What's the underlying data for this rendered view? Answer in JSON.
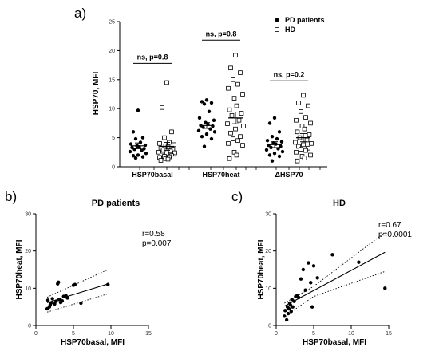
{
  "figure": {
    "panel_a_label": "a)",
    "panel_b_label": "b)",
    "panel_c_label": "c)"
  },
  "chart_data": [
    {
      "panel": "a",
      "type": "scatter",
      "title": "",
      "xlabel": "",
      "ylabel": "HSP70, MFI",
      "ylim": [
        0,
        25
      ],
      "yticks": [
        0,
        5,
        10,
        15,
        20,
        25
      ],
      "categories": [
        "HSP70basal",
        "HSP70heat",
        "ΔHSP70"
      ],
      "legend": {
        "placement": "top-right",
        "entries": [
          "PD patients",
          "HD"
        ]
      },
      "annotations": [
        "ns, p=0.8",
        "ns, p=0.8",
        "ns, p=0.2"
      ],
      "series": [
        {
          "name": "PD patients",
          "marker": "filled-circle",
          "values": [
            [
              9.7,
              6.0,
              5.0,
              4.8,
              4.2,
              3.9,
              3.7,
              3.6,
              3.4,
              3.3,
              3.1,
              3.0,
              2.8,
              2.6,
              2.3,
              2.0,
              1.9,
              1.7,
              1.5
            ],
            [
              11.5,
              11.2,
              11.0,
              10.8,
              9.5,
              8.4,
              8.0,
              7.6,
              7.3,
              7.1,
              7.0,
              6.8,
              6.5,
              6.2,
              6.0,
              5.6,
              5.2,
              4.8,
              3.5
            ],
            [
              8.4,
              7.5,
              6.0,
              5.2,
              4.8,
              4.5,
              4.3,
              4.1,
              3.9,
              3.7,
              3.5,
              3.3,
              3.1,
              2.9,
              2.6,
              2.3,
              2.0,
              1.8,
              1.0
            ]
          ],
          "means": [
            3.6,
            7.1,
            3.8
          ],
          "sem": [
            0.5,
            0.5,
            0.5
          ]
        },
        {
          "name": "HD",
          "marker": "open-square",
          "values": [
            [
              14.5,
              10.2,
              6.0,
              5.0,
              4.2,
              4.0,
              3.8,
              3.6,
              3.4,
              3.2,
              3.0,
              2.9,
              2.7,
              2.5,
              2.4,
              2.2,
              2.0,
              1.9,
              1.8,
              1.7,
              1.6,
              1.5,
              1.4,
              1.3,
              1.1
            ],
            [
              19.2,
              17.0,
              16.2,
              15.0,
              14.2,
              13.5,
              12.5,
              11.8,
              10.5,
              9.8,
              9.2,
              8.8,
              8.0,
              7.4,
              7.0,
              6.5,
              5.8,
              5.2,
              4.8,
              4.5,
              4.0,
              3.7,
              2.5,
              2.0,
              1.4
            ],
            [
              12.3,
              11.0,
              10.5,
              9.5,
              8.5,
              8.0,
              7.5,
              7.0,
              6.5,
              6.0,
              5.5,
              5.0,
              4.6,
              4.2,
              4.0,
              3.8,
              3.5,
              3.2,
              3.0,
              2.8,
              2.5,
              2.0,
              1.8,
              1.5,
              1.0
            ]
          ],
          "means": [
            3.5,
            8.4,
            5.0
          ],
          "sem": [
            0.7,
            1.0,
            0.7
          ]
        }
      ]
    },
    {
      "panel": "b",
      "type": "scatter",
      "title": "PD patients",
      "xlabel": "HSP70basal, MFI",
      "ylabel": "HSP70heat, MFI",
      "xlim": [
        0,
        15
      ],
      "ylim": [
        0,
        30
      ],
      "xticks": [
        0,
        5,
        10,
        15
      ],
      "yticks": [
        0,
        10,
        20,
        30
      ],
      "stats": [
        "r=0.58",
        "p=0.007"
      ],
      "x": [
        1.5,
        1.6,
        1.8,
        1.9,
        2.0,
        2.2,
        2.5,
        2.7,
        2.9,
        3.0,
        3.1,
        3.3,
        3.5,
        3.7,
        4.0,
        4.2,
        5.0,
        5.2,
        6.0,
        9.6
      ],
      "y": [
        4.5,
        6.8,
        5.0,
        5.5,
        6.0,
        7.2,
        5.8,
        6.5,
        11.2,
        11.6,
        7.0,
        6.2,
        6.6,
        7.8,
        8.0,
        7.4,
        10.8,
        11.0,
        6.0,
        11.0
      ],
      "fit": {
        "intercept": 5.2,
        "slope": 0.62
      },
      "ci_upper": [
        [
          1.5,
          7.6
        ],
        [
          9.6,
          15.0
        ]
      ],
      "ci_lower": [
        [
          1.5,
          3.6
        ],
        [
          9.6,
          8.5
        ]
      ]
    },
    {
      "panel": "c",
      "type": "scatter",
      "title": "HD",
      "xlabel": "HSP70basal, MFI",
      "ylabel": "HSP70heat, MFI",
      "xlim": [
        0,
        15
      ],
      "ylim": [
        0,
        30
      ],
      "xticks": [
        0,
        5,
        10,
        15
      ],
      "yticks": [
        0,
        10,
        20,
        30
      ],
      "stats": [
        "r=0.67",
        "p=0.0001"
      ],
      "x": [
        1.1,
        1.2,
        1.4,
        1.5,
        1.6,
        1.7,
        1.8,
        1.9,
        2.0,
        2.1,
        2.2,
        2.4,
        2.6,
        2.8,
        3.0,
        3.3,
        3.6,
        3.9,
        4.3,
        4.6,
        4.8,
        5.0,
        5.5,
        7.5,
        11.0,
        14.5
      ],
      "y": [
        2.5,
        4.0,
        1.5,
        5.0,
        3.2,
        4.5,
        6.0,
        5.5,
        3.8,
        7.0,
        5.0,
        6.5,
        7.8,
        8.0,
        7.5,
        12.5,
        15.0,
        9.5,
        16.8,
        11.5,
        5.0,
        16.0,
        12.8,
        19.0,
        17.0,
        10.0
      ],
      "fit": {
        "intercept": 4.0,
        "slope": 1.08
      },
      "ci_upper": [
        [
          1.1,
          6.0
        ],
        [
          5.0,
          10.5
        ],
        [
          14.5,
          25.0
        ]
      ],
      "ci_lower": [
        [
          1.1,
          2.4
        ],
        [
          5.0,
          7.8
        ],
        [
          14.5,
          14.5
        ]
      ]
    }
  ]
}
